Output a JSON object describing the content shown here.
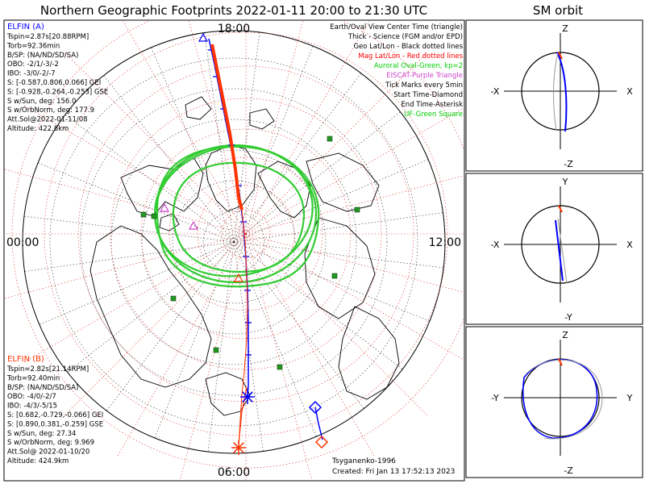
{
  "title": "Northern Geographic Footprints 2022-01-11 20:00 to 21:30 UTC",
  "orbit_title": "SM orbit",
  "time_labels": {
    "top": "18:00",
    "left": "00:00",
    "right": "12:00",
    "bottom": "06:00"
  },
  "legend": {
    "lines": [
      {
        "text": "Earth/Oval View Center Time (triangle)",
        "color": "#000000"
      },
      {
        "text": "Thick - Science (FGM and/or EPD)",
        "color": "#000000"
      },
      {
        "text": "Geo Lat/Lon - Black dotted lines",
        "color": "#000000"
      },
      {
        "text": "Mag Lat/Lon - Red dotted lines",
        "color": "#ff0000"
      },
      {
        "text": "Auroral Oval-Green, kp=2",
        "color": "#00cc00"
      },
      {
        "text": "EISCAT-Purple Triangle",
        "color": "#cc44cc"
      },
      {
        "text": "Tick Marks every 5min",
        "color": "#000000"
      },
      {
        "text": "Start Time-Diamond",
        "color": "#000000"
      },
      {
        "text": "End Time-Asterisk",
        "color": "#000000"
      },
      {
        "text": "UF-Green Square",
        "color": "#00cc00"
      }
    ]
  },
  "elfin_a": {
    "name": "ELFIN (A)",
    "color": "#0000ff",
    "lines": [
      "Tspin=2.87s[20.88RPM]",
      "Torb=92.36min",
      "B/SP: (NA/ND/SD/SA)",
      "OBO: -2/1/-3/-2",
      "IBO: -3/0/-2/-7",
      "S: [-0.587,0.806,0.066] GEI",
      "S: [-0.928,-0.264,-0.253] GSE",
      "S w/Sun, deg: 156.0",
      "S w/OrbNorm, deg: 177.9",
      "Att.Sol@2022-01-11/08",
      "Altitude: 422.8km"
    ]
  },
  "elfin_b": {
    "name": "ELFIN (B)",
    "color": "#ff3300",
    "lines": [
      "Tspin=2.82s[21.14RPM]",
      "Torb=92.40min",
      "B/SP: (NA/ND/SD/SA)",
      "OBO: -4/0/-2/7",
      "IBO: -4/3/-5/15",
      "S: [0.682,-0.729,-0.066] GEI",
      "S: [0.890,0.381,-0.259] GSE",
      "S w/Sun, deg: 27.34",
      "S w/OrbNorm, deg: 9.969",
      "Att.Sol@ 2022-01-10/20",
      "Altitude: 424.9km"
    ]
  },
  "footer": {
    "model": "Tsyganenko-1996",
    "created": "Created: Fri Jan 13 17:52:13 2023"
  },
  "orbit_panels": [
    {
      "top": "Z",
      "bottom": "-Z",
      "left": "-X",
      "right": "X"
    },
    {
      "top": "Y",
      "bottom": "-Y",
      "left": "-X",
      "right": "X"
    },
    {
      "top": "Z",
      "bottom": "-Z",
      "left": "-Y",
      "right": "Y"
    }
  ],
  "colors": {
    "elfin_a": "#0000ff",
    "elfin_b": "#ff3300",
    "oval": "#33cc33",
    "geo_grid": "#333333",
    "mag_grid": "#e03030",
    "eiscat": "#cc44cc",
    "uf_square": "#229922",
    "land": "#ffffff",
    "coast": "#000000"
  },
  "chart_data": {
    "type": "polar-map",
    "projection": "north polar, geographic",
    "time_range": [
      "2022-01-11 20:00",
      "2022-01-11 21:30"
    ],
    "series": [
      {
        "name": "ELFIN (A)",
        "marker_start": "diamond",
        "marker_end": "asterisk"
      },
      {
        "name": "ELFIN (B)",
        "marker_start": "diamond",
        "marker_end": "asterisk"
      }
    ],
    "uf_squares": 8,
    "tick_interval_min": 5,
    "kp": 2
  }
}
